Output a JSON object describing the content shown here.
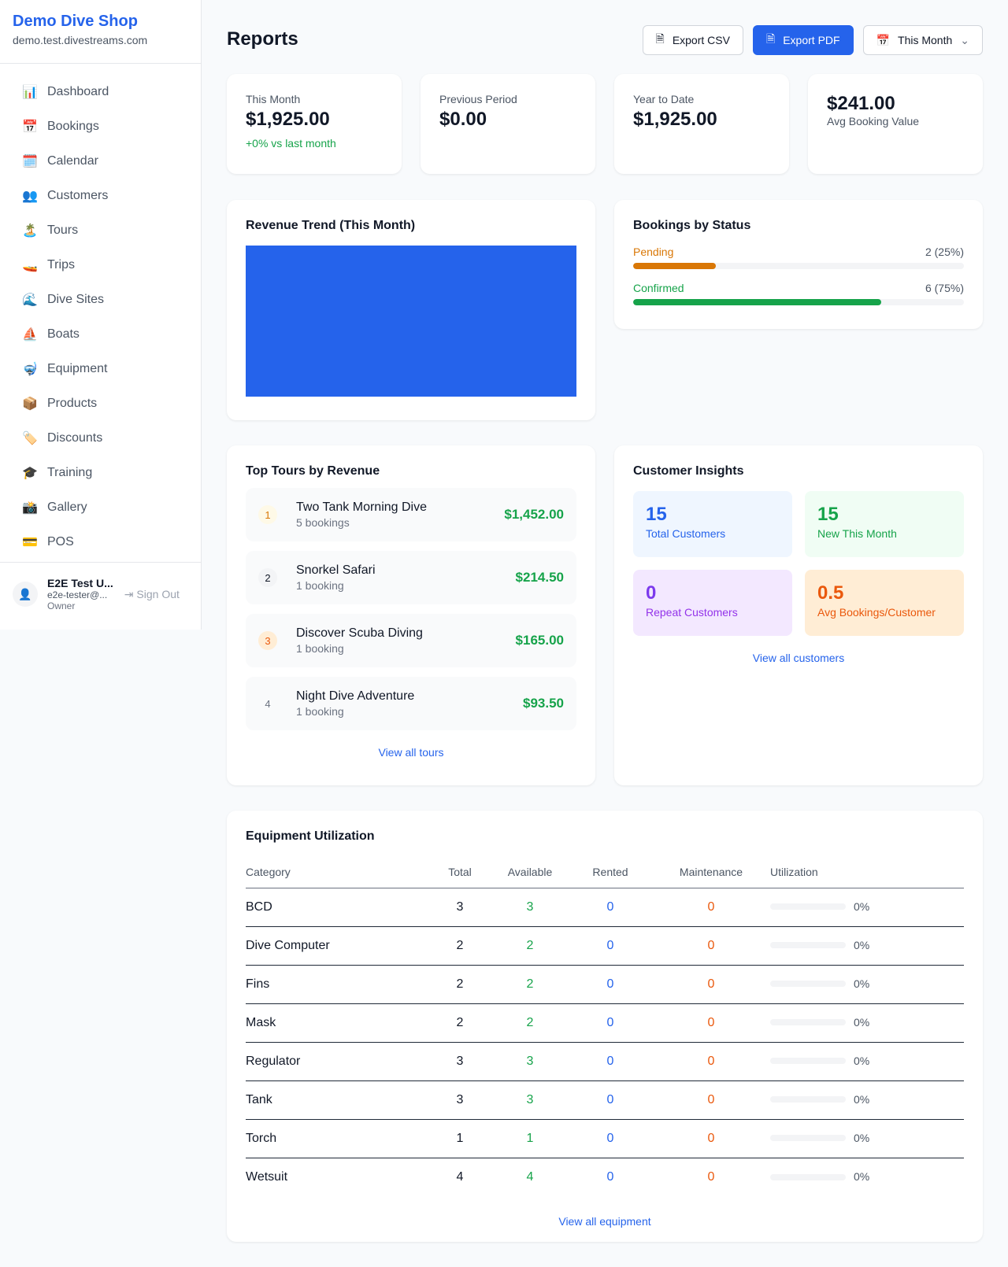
{
  "sidebar": {
    "shop_name": "Demo Dive Shop",
    "domain": "demo.test.divestreams.com",
    "items": [
      {
        "icon": "📊",
        "label": "Dashboard"
      },
      {
        "icon": "📅",
        "label": "Bookings"
      },
      {
        "icon": "🗓️",
        "label": "Calendar"
      },
      {
        "icon": "👥",
        "label": "Customers"
      },
      {
        "icon": "🏝️",
        "label": "Tours"
      },
      {
        "icon": "🚤",
        "label": "Trips"
      },
      {
        "icon": "🌊",
        "label": "Dive Sites"
      },
      {
        "icon": "⛵",
        "label": "Boats"
      },
      {
        "icon": "🤿",
        "label": "Equipment"
      },
      {
        "icon": "📦",
        "label": "Products"
      },
      {
        "icon": "🏷️",
        "label": "Discounts"
      },
      {
        "icon": "🎓",
        "label": "Training"
      },
      {
        "icon": "📸",
        "label": "Gallery"
      },
      {
        "icon": "💳",
        "label": "POS"
      }
    ],
    "user": {
      "name": "E2E Test U...",
      "email": "e2e-tester@...",
      "role": "Owner",
      "sign_out": "Sign Out"
    }
  },
  "header": {
    "title": "Reports",
    "export_csv": "Export CSV",
    "export_pdf": "Export PDF",
    "period": "This Month"
  },
  "stats": [
    {
      "label": "This Month",
      "value": "$1,925.00",
      "change": "+0% vs last month"
    },
    {
      "label": "Previous Period",
      "value": "$0.00"
    },
    {
      "label": "Year to Date",
      "value": "$1,925.00"
    },
    {
      "value": "$241.00",
      "label": "Avg Booking Value"
    }
  ],
  "revenue": {
    "title": "Revenue Trend (This Month)",
    "color": "#2563eb"
  },
  "status": {
    "title": "Bookings by Status",
    "items": [
      {
        "label": "Pending",
        "value": "2 (25%)",
        "percent": 25,
        "color": "#d97706"
      },
      {
        "label": "Confirmed",
        "value": "6 (75%)",
        "percent": 75,
        "color": "#16a34a"
      }
    ]
  },
  "tours": {
    "title": "Top Tours by Revenue",
    "link": "View all tours",
    "items": [
      {
        "rank": "1",
        "name": "Two Tank Morning Dive",
        "count": "5 bookings",
        "revenue": "$1,452.00"
      },
      {
        "rank": "2",
        "name": "Snorkel Safari",
        "count": "1 booking",
        "revenue": "$214.50"
      },
      {
        "rank": "3",
        "name": "Discover Scuba Diving",
        "count": "1 booking",
        "revenue": "$165.00"
      },
      {
        "rank": "4",
        "name": "Night Dive Adventure",
        "count": "1 booking",
        "revenue": "$93.50"
      }
    ]
  },
  "insights": {
    "title": "Customer Insights",
    "link": "View all customers",
    "items": [
      {
        "value": "15",
        "label": "Total Customers"
      },
      {
        "value": "15",
        "label": "New This Month"
      },
      {
        "value": "0",
        "label": "Repeat Customers"
      },
      {
        "value": "0.5",
        "label": "Avg Bookings/Customer"
      }
    ]
  },
  "equipment": {
    "title": "Equipment Utilization",
    "link": "View all equipment",
    "columns": [
      "Category",
      "Total",
      "Available",
      "Rented",
      "Maintenance",
      "Utilization"
    ],
    "rows": [
      [
        "BCD",
        "3",
        "3",
        "0",
        "0",
        "0%"
      ],
      [
        "Dive Computer",
        "2",
        "2",
        "0",
        "0",
        "0%"
      ],
      [
        "Fins",
        "2",
        "2",
        "0",
        "0",
        "0%"
      ],
      [
        "Mask",
        "2",
        "2",
        "0",
        "0",
        "0%"
      ],
      [
        "Regulator",
        "3",
        "3",
        "0",
        "0",
        "0%"
      ],
      [
        "Tank",
        "3",
        "3",
        "0",
        "0",
        "0%"
      ],
      [
        "Torch",
        "1",
        "1",
        "0",
        "0",
        "0%"
      ],
      [
        "Wetsuit",
        "4",
        "4",
        "0",
        "0",
        "0%"
      ]
    ]
  }
}
